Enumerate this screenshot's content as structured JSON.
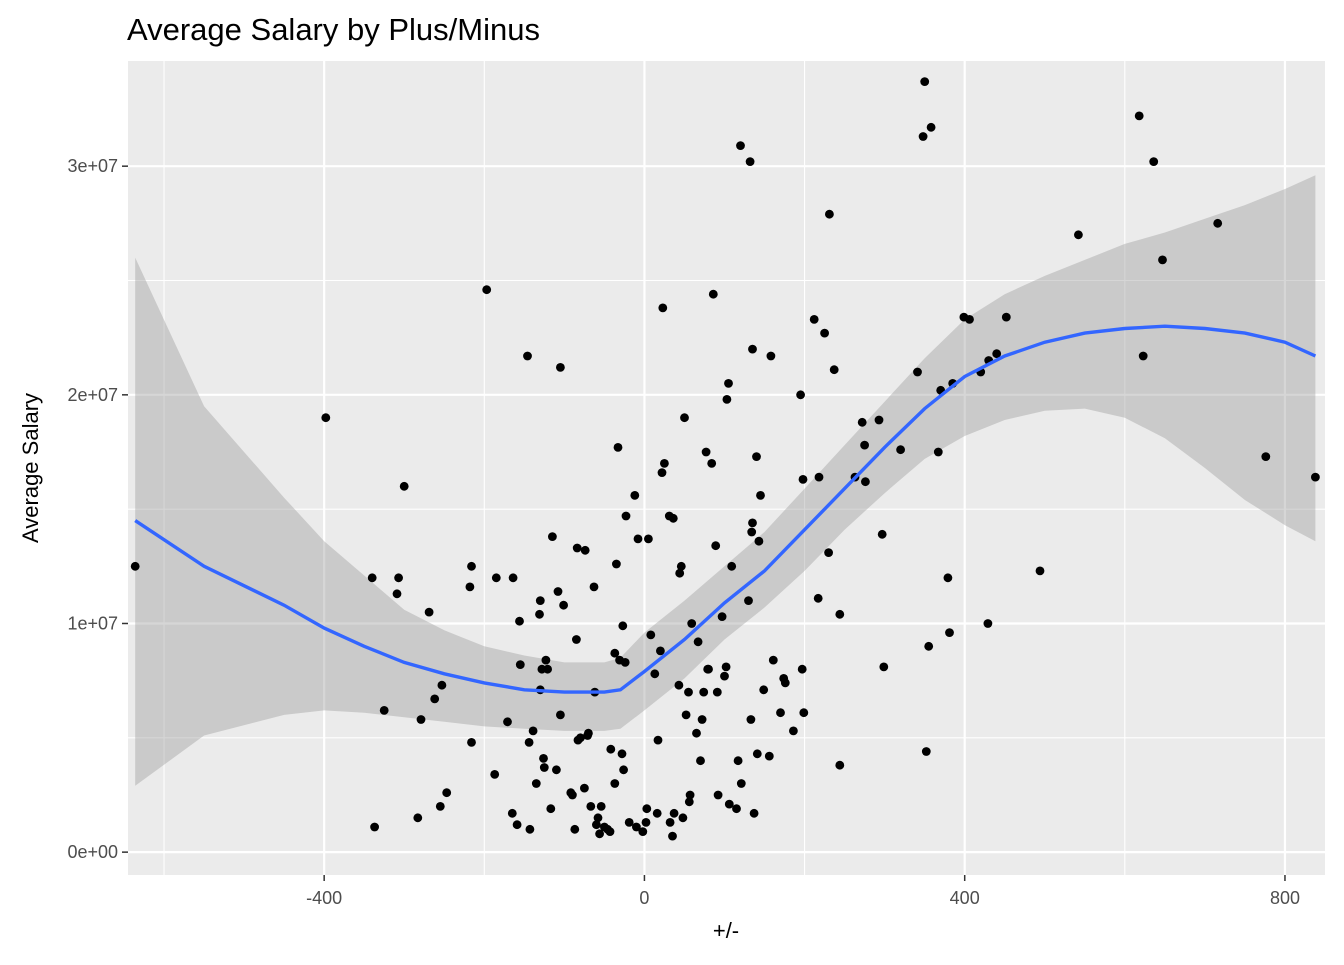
{
  "chart_data": {
    "type": "scatter",
    "title": "Average Salary by Plus/Minus",
    "xlabel": "+/-",
    "ylabel": "Average Salary",
    "xlim": [
      -645,
      850
    ],
    "ylim": [
      -1000000,
      34600000
    ],
    "x_ticks": [
      -400,
      0,
      400,
      800
    ],
    "x_tick_labels": [
      "-400",
      "0",
      "400",
      "800"
    ],
    "y_ticks": [
      0,
      10000000,
      20000000,
      30000000
    ],
    "y_tick_labels": [
      "0e+00",
      "1e+07",
      "2e+07",
      "3e+07"
    ],
    "grid": true,
    "legend": "none",
    "colors": {
      "panel_background": "#EBEBEB",
      "grid": "#FFFFFF",
      "points": "#000000",
      "smooth_line": "#3366FF",
      "confidence_band": "#999999"
    },
    "points": [
      [
        -636,
        12500000
      ],
      [
        -398,
        19000000
      ],
      [
        -340,
        12000000
      ],
      [
        -337,
        1100000
      ],
      [
        -325,
        6200000
      ],
      [
        -309,
        11300000
      ],
      [
        -307,
        12000000
      ],
      [
        -300,
        16000000
      ],
      [
        -283,
        1500000
      ],
      [
        -279,
        5800000
      ],
      [
        -269,
        10500000
      ],
      [
        -262,
        6700000
      ],
      [
        -255,
        2000000
      ],
      [
        -253,
        7300000
      ],
      [
        -247,
        2600000
      ],
      [
        -218,
        11600000
      ],
      [
        -216,
        12500000
      ],
      [
        -216,
        4800000
      ],
      [
        -197,
        24600000
      ],
      [
        -187,
        3400000
      ],
      [
        -185,
        12000000
      ],
      [
        -171,
        5700000
      ],
      [
        -165,
        1700000
      ],
      [
        -164,
        12000000
      ],
      [
        -159,
        1200000
      ],
      [
        -156,
        10100000
      ],
      [
        -155,
        8200000
      ],
      [
        -146,
        21700000
      ],
      [
        -144,
        4800000
      ],
      [
        -143,
        1000000
      ],
      [
        -139,
        5300000
      ],
      [
        -135,
        3000000
      ],
      [
        -131,
        10400000
      ],
      [
        -130,
        11000000
      ],
      [
        -130,
        7100000
      ],
      [
        -128,
        8000000
      ],
      [
        -126,
        4100000
      ],
      [
        -125,
        3700000
      ],
      [
        -123,
        8400000
      ],
      [
        -121,
        8000000
      ],
      [
        -117,
        1900000
      ],
      [
        -115,
        13800000
      ],
      [
        -110,
        3600000
      ],
      [
        -108,
        11400000
      ],
      [
        -105,
        21200000
      ],
      [
        -105,
        6000000
      ],
      [
        -101,
        10800000
      ],
      [
        -92,
        2600000
      ],
      [
        -90,
        2500000
      ],
      [
        -87,
        1000000
      ],
      [
        -85,
        9300000
      ],
      [
        -84,
        13300000
      ],
      [
        -83,
        4900000
      ],
      [
        -80,
        5000000
      ],
      [
        -75,
        2800000
      ],
      [
        -74,
        13200000
      ],
      [
        -71,
        5100000
      ],
      [
        -70,
        5200000
      ],
      [
        -67,
        2000000
      ],
      [
        -63,
        11600000
      ],
      [
        -62,
        7000000
      ],
      [
        -60,
        1200000
      ],
      [
        -58,
        1500000
      ],
      [
        -56,
        800000
      ],
      [
        -54,
        2000000
      ],
      [
        -50,
        1100000
      ],
      [
        -46,
        1000000
      ],
      [
        -43,
        900000
      ],
      [
        -42,
        4500000
      ],
      [
        -37,
        8700000
      ],
      [
        -37,
        3000000
      ],
      [
        -35,
        12600000
      ],
      [
        -33,
        17700000
      ],
      [
        -31,
        8400000
      ],
      [
        -28,
        4300000
      ],
      [
        -27,
        9900000
      ],
      [
        -26,
        3600000
      ],
      [
        -24,
        8300000
      ],
      [
        -23,
        14700000
      ],
      [
        -19,
        1300000
      ],
      [
        -12,
        15600000
      ],
      [
        -10,
        1100000
      ],
      [
        -8,
        13700000
      ],
      [
        -2,
        900000
      ],
      [
        2,
        1300000
      ],
      [
        3,
        1900000
      ],
      [
        5,
        13700000
      ],
      [
        8,
        9500000
      ],
      [
        13,
        7800000
      ],
      [
        16,
        1700000
      ],
      [
        17,
        4900000
      ],
      [
        20,
        8800000
      ],
      [
        22,
        16600000
      ],
      [
        23,
        23800000
      ],
      [
        25,
        17000000
      ],
      [
        31,
        14700000
      ],
      [
        32,
        1300000
      ],
      [
        35,
        700000
      ],
      [
        36,
        14600000
      ],
      [
        37,
        1700000
      ],
      [
        43,
        7300000
      ],
      [
        44,
        12200000
      ],
      [
        46,
        12500000
      ],
      [
        48,
        1500000
      ],
      [
        50,
        19000000
      ],
      [
        52,
        6000000
      ],
      [
        55,
        7000000
      ],
      [
        56,
        2200000
      ],
      [
        57,
        2500000
      ],
      [
        59,
        10000000
      ],
      [
        65,
        5200000
      ],
      [
        67,
        9200000
      ],
      [
        70,
        4000000
      ],
      [
        72,
        5800000
      ],
      [
        74,
        7000000
      ],
      [
        77,
        17500000
      ],
      [
        79,
        8000000
      ],
      [
        80,
        8000000
      ],
      [
        84,
        17000000
      ],
      [
        86,
        24400000
      ],
      [
        89,
        13400000
      ],
      [
        91,
        7000000
      ],
      [
        92,
        2500000
      ],
      [
        97,
        10300000
      ],
      [
        100,
        7700000
      ],
      [
        102,
        8100000
      ],
      [
        103,
        19800000
      ],
      [
        105,
        20500000
      ],
      [
        106,
        2100000
      ],
      [
        109,
        12500000
      ],
      [
        115,
        1900000
      ],
      [
        117,
        4000000
      ],
      [
        120,
        30900000
      ],
      [
        121,
        3000000
      ],
      [
        130,
        11000000
      ],
      [
        132,
        30200000
      ],
      [
        133,
        5800000
      ],
      [
        134,
        14000000
      ],
      [
        135,
        14400000
      ],
      [
        135,
        22000000
      ],
      [
        137,
        1700000
      ],
      [
        140,
        17300000
      ],
      [
        141,
        4300000
      ],
      [
        143,
        13600000
      ],
      [
        145,
        15600000
      ],
      [
        149,
        7100000
      ],
      [
        156,
        4200000
      ],
      [
        158,
        21700000
      ],
      [
        161,
        8400000
      ],
      [
        170,
        6100000
      ],
      [
        174,
        7600000
      ],
      [
        176,
        7400000
      ],
      [
        186,
        5300000
      ],
      [
        195,
        20000000
      ],
      [
        197,
        8000000
      ],
      [
        198,
        16300000
      ],
      [
        199,
        6100000
      ],
      [
        212,
        23300000
      ],
      [
        217,
        11100000
      ],
      [
        218,
        16400000
      ],
      [
        225,
        22700000
      ],
      [
        230,
        13100000
      ],
      [
        231,
        27900000
      ],
      [
        237,
        21100000
      ],
      [
        244,
        10400000
      ],
      [
        244,
        3800000
      ],
      [
        263,
        16400000
      ],
      [
        272,
        18800000
      ],
      [
        275,
        17800000
      ],
      [
        276,
        16200000
      ],
      [
        293,
        18900000
      ],
      [
        297,
        13900000
      ],
      [
        299,
        8100000
      ],
      [
        320,
        17600000
      ],
      [
        341,
        21000000
      ],
      [
        348,
        31300000
      ],
      [
        350,
        33700000
      ],
      [
        352,
        4400000
      ],
      [
        355,
        9000000
      ],
      [
        358,
        31700000
      ],
      [
        367,
        17500000
      ],
      [
        370,
        20200000
      ],
      [
        379,
        12000000
      ],
      [
        381,
        9600000
      ],
      [
        385,
        20500000
      ],
      [
        399,
        23400000
      ],
      [
        406,
        23300000
      ],
      [
        420,
        21000000
      ],
      [
        429,
        10000000
      ],
      [
        430,
        21500000
      ],
      [
        440,
        21800000
      ],
      [
        452,
        23400000
      ],
      [
        494,
        12300000
      ],
      [
        542,
        27000000
      ],
      [
        618,
        32200000
      ],
      [
        623,
        21700000
      ],
      [
        636,
        30200000
      ],
      [
        647,
        25900000
      ],
      [
        716,
        27500000
      ],
      [
        776,
        17300000
      ],
      [
        838,
        16400000
      ]
    ],
    "smooth": {
      "x": [
        -636,
        -550,
        -450,
        -400,
        -350,
        -300,
        -250,
        -200,
        -150,
        -100,
        -50,
        -30,
        0,
        50,
        100,
        150,
        200,
        250,
        300,
        350,
        400,
        450,
        500,
        550,
        600,
        650,
        700,
        750,
        800,
        838
      ],
      "y": [
        14500000,
        12500000,
        10800000,
        9800000,
        9000000,
        8300000,
        7800000,
        7400000,
        7100000,
        7000000,
        7000000,
        7100000,
        7900000,
        9300000,
        10900000,
        12300000,
        14100000,
        15900000,
        17700000,
        19400000,
        20800000,
        21700000,
        22300000,
        22700000,
        22900000,
        23000000,
        22900000,
        22700000,
        22300000,
        21700000
      ],
      "lower": [
        2900000,
        5100000,
        6000000,
        6200000,
        6100000,
        5900000,
        5700000,
        5500000,
        5400000,
        5300000,
        5300000,
        5400000,
        6200000,
        7600000,
        9300000,
        10700000,
        12300000,
        14100000,
        15700000,
        17200000,
        18200000,
        18900000,
        19300000,
        19400000,
        19000000,
        18100000,
        16800000,
        15400000,
        14300000,
        13600000
      ],
      "upper": [
        26000000,
        19500000,
        15500000,
        13600000,
        12100000,
        10600000,
        9700000,
        9000000,
        8600000,
        8300000,
        8300000,
        8500000,
        9600000,
        11000000,
        12500000,
        14000000,
        15900000,
        17800000,
        19700000,
        21600000,
        23300000,
        24400000,
        25200000,
        25900000,
        26600000,
        27100000,
        27700000,
        28300000,
        29000000,
        29600000
      ]
    }
  }
}
